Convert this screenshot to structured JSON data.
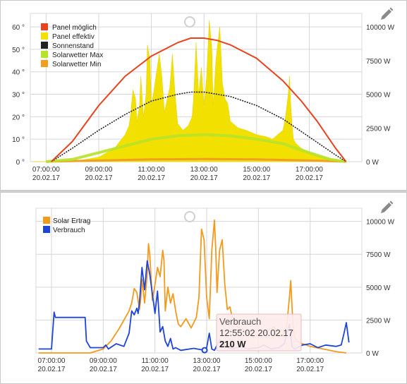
{
  "icons": {
    "edit": "pencil-icon",
    "drag": "circle-handle-icon"
  },
  "colors": {
    "panel_moeglich": "#e8431e",
    "panel_effektiv": "#f2e000",
    "sonnenstand": "#222222",
    "solarwetter_max": "#b7e22a",
    "solarwetter_min": "#f0a020",
    "solar_ertrag": "#f39a1c",
    "verbrauch": "#1f44d8",
    "grid": "#d6d6d6"
  },
  "x_ticks": [
    {
      "time": "07:00:00",
      "date": "20.02.17"
    },
    {
      "time": "09:00:00",
      "date": "20.02.17"
    },
    {
      "time": "11:00:00",
      "date": "20.02.17"
    },
    {
      "time": "13:00:00",
      "date": "20.02.17"
    },
    {
      "time": "15:00:00",
      "date": "20.02.17"
    },
    {
      "time": "17:00:00",
      "date": "20.02.17"
    }
  ],
  "chart_data": [
    {
      "type": "area",
      "x_unit": "hours",
      "xlim": [
        6.4,
        19.0
      ],
      "left_axis": {
        "ticks": [
          "0 °",
          "10 °",
          "20 °",
          "30 °",
          "40 °",
          "50 °",
          "60 °"
        ],
        "ylim": [
          0,
          66
        ]
      },
      "right_axis": {
        "ticks": [
          "0 W",
          "2500 W",
          "5000 W",
          "7500 W",
          "10000 W"
        ],
        "ylim": [
          0,
          11000
        ]
      },
      "grid": true,
      "legend_position": "top-left",
      "legend": [
        "Panel möglich",
        "Panel effektiv",
        "Sonnenstand",
        "Solarwetter Max",
        "Solarwetter Min"
      ],
      "series": [
        {
          "name": "Panel möglich",
          "type": "line",
          "axis": "left",
          "x": [
            7.2,
            8.0,
            9.0,
            10.0,
            11.0,
            12.0,
            12.5,
            13.0,
            13.5,
            14.0,
            15.0,
            16.0,
            16.7,
            17.3,
            18.0,
            18.4
          ],
          "values": [
            0,
            9,
            25,
            38,
            47,
            53,
            55,
            55,
            54,
            52,
            46,
            36,
            27,
            18,
            6,
            0
          ]
        },
        {
          "name": "Sonnenstand",
          "type": "line",
          "axis": "left",
          "x": [
            7.2,
            8.0,
            9.0,
            10.0,
            11.0,
            12.0,
            12.5,
            13.0,
            13.5,
            14.0,
            15.0,
            16.0,
            17.0,
            18.0,
            18.4
          ],
          "values": [
            0,
            6,
            14,
            21,
            27,
            30,
            31,
            31,
            30,
            29,
            25,
            19,
            11,
            3,
            0
          ]
        },
        {
          "name": "Solarwetter Max",
          "type": "line",
          "axis": "left",
          "x": [
            7.0,
            8.0,
            9.0,
            10.0,
            11.0,
            12.0,
            13.0,
            14.0,
            15.0,
            16.0,
            17.0,
            17.8,
            18.4
          ],
          "values": [
            0,
            1,
            4,
            7,
            10,
            11.5,
            12,
            11.5,
            10,
            8,
            4,
            1,
            0
          ]
        },
        {
          "name": "Solarwetter Min",
          "type": "line",
          "axis": "left",
          "x": [
            7.0,
            9.0,
            11.0,
            13.0,
            15.0,
            17.0,
            18.4
          ],
          "values": [
            0,
            0.5,
            1,
            1.2,
            1,
            0.5,
            0
          ]
        },
        {
          "name": "Panel effektiv",
          "type": "area",
          "axis": "left",
          "x": [
            6.5,
            8.0,
            9.0,
            9.3,
            9.6,
            9.8,
            10.0,
            10.15,
            10.2,
            10.3,
            10.4,
            10.45,
            10.55,
            10.6,
            10.7,
            10.8,
            10.85,
            10.95,
            11.0,
            11.1,
            11.2,
            11.3,
            11.4,
            11.5,
            11.6,
            11.7,
            11.8,
            11.9,
            12.0,
            12.2,
            12.4,
            12.55,
            12.6,
            12.7,
            12.8,
            12.9,
            13.0,
            13.1,
            13.2,
            13.3,
            13.35,
            13.45,
            13.5,
            13.6,
            13.7,
            13.8,
            13.9,
            14.0,
            14.3,
            14.6,
            15.0,
            15.4,
            15.6,
            15.8,
            16.0,
            16.1,
            16.2,
            16.25,
            16.3,
            16.35,
            16.4,
            16.5,
            16.7,
            17.0,
            17.5,
            18.4
          ],
          "values": [
            0,
            0,
            2,
            4,
            6,
            9,
            12,
            16,
            20,
            32,
            28,
            18,
            25,
            38,
            20,
            30,
            52,
            45,
            25,
            32,
            40,
            48,
            38,
            22,
            28,
            33,
            48,
            30,
            17,
            14,
            16,
            20,
            28,
            53,
            30,
            42,
            25,
            38,
            63,
            50,
            25,
            45,
            50,
            60,
            35,
            28,
            26,
            18,
            15,
            14,
            12,
            11,
            10,
            12,
            14,
            20,
            30,
            38,
            25,
            16,
            10,
            8,
            6,
            4,
            2,
            0
          ]
        }
      ]
    },
    {
      "type": "line",
      "x_unit": "hours",
      "xlim": [
        6.4,
        19.0
      ],
      "right_axis": {
        "ticks": [
          "0 W",
          "2500 W",
          "5000 W",
          "7500 W",
          "10000 W"
        ],
        "ylim": [
          0,
          11000
        ]
      },
      "grid": true,
      "legend_position": "top-left",
      "legend": [
        "Solar Ertrag",
        "Verbrauch"
      ],
      "tooltip": {
        "title": "Verbrauch",
        "time": "12:55:02 20.02.17",
        "value": "210 W"
      },
      "series": [
        {
          "name": "Solar Ertrag",
          "x": [
            6.5,
            7.5,
            8.5,
            9.0,
            9.3,
            9.6,
            9.8,
            10.0,
            10.1,
            10.2,
            10.3,
            10.4,
            10.45,
            10.5,
            10.6,
            10.7,
            10.75,
            10.8,
            10.9,
            11.0,
            11.1,
            11.2,
            11.3,
            11.35,
            11.4,
            11.5,
            11.6,
            11.7,
            11.8,
            11.9,
            12.0,
            12.2,
            12.4,
            12.6,
            12.7,
            12.8,
            12.9,
            13.0,
            13.1,
            13.2,
            13.3,
            13.35,
            13.4,
            13.5,
            13.6,
            13.7,
            13.8,
            13.9,
            14.0,
            14.2,
            14.4,
            14.6,
            14.8,
            15.0,
            15.3,
            15.6,
            15.8,
            16.0,
            16.1,
            16.2,
            16.25,
            16.3,
            16.35,
            16.4,
            16.5,
            16.7,
            17.0,
            17.5,
            18.0,
            18.4
          ],
          "values": [
            0,
            0,
            0,
            300,
            900,
            1800,
            2500,
            3200,
            3800,
            4900,
            4600,
            3300,
            4100,
            5600,
            3800,
            6000,
            8300,
            7500,
            4000,
            5200,
            6500,
            5800,
            7800,
            7000,
            3200,
            5000,
            3800,
            4500,
            3200,
            2200,
            2000,
            2600,
            1900,
            2700,
            4200,
            9400,
            8600,
            4200,
            2600,
            7800,
            10100,
            8000,
            4600,
            7800,
            8600,
            5200,
            3300,
            3500,
            2600,
            2000,
            1800,
            1500,
            1200,
            1400,
            1600,
            2000,
            1300,
            1500,
            2200,
            4200,
            5500,
            3500,
            1800,
            1200,
            900,
            700,
            500,
            300,
            100,
            0
          ]
        },
        {
          "name": "Verbrauch",
          "x": [
            6.5,
            7.0,
            7.1,
            7.15,
            8.3,
            8.35,
            8.5,
            9.0,
            9.1,
            9.2,
            9.5,
            9.8,
            10.0,
            10.1,
            10.2,
            10.3,
            10.35,
            10.4,
            10.5,
            10.6,
            10.7,
            10.8,
            10.9,
            11.0,
            11.1,
            11.2,
            11.3,
            11.4,
            11.5,
            11.6,
            11.7,
            11.8,
            11.9,
            12.0,
            12.5,
            12.9,
            13.0,
            13.1,
            13.2,
            13.3,
            13.5,
            13.8,
            14.0,
            14.3,
            14.6,
            15.0,
            15.2,
            15.5,
            15.8,
            16.0,
            16.2,
            16.3,
            16.4,
            16.5,
            16.7,
            17.0,
            17.3,
            17.6,
            18.0,
            18.2,
            18.3,
            18.4,
            18.5
          ],
          "values": [
            300,
            300,
            3100,
            2700,
            2700,
            900,
            400,
            400,
            600,
            300,
            700,
            500,
            1500,
            3200,
            2900,
            3400,
            3000,
            3800,
            6500,
            4800,
            7000,
            6000,
            4500,
            3000,
            4700,
            1600,
            2000,
            900,
            500,
            1100,
            300,
            400,
            300,
            200,
            350,
            210,
            400,
            1500,
            300,
            200,
            1000,
            400,
            300,
            500,
            300,
            400,
            600,
            300,
            400,
            700,
            2200,
            500,
            300,
            400,
            600,
            700,
            400,
            600,
            500,
            600,
            1400,
            2300,
            800
          ]
        }
      ]
    }
  ]
}
